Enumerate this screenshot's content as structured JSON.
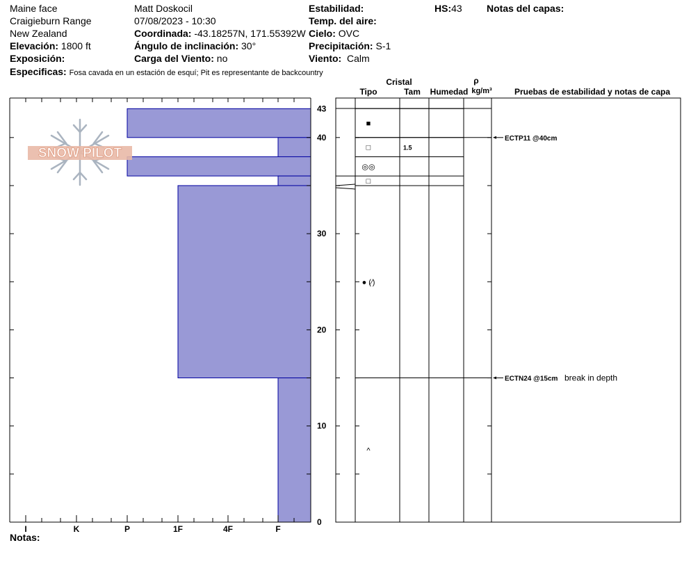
{
  "header": {
    "location": "Maine face",
    "range": "Craigieburn Range",
    "country": "New Zealand",
    "elevation_label": "Elevación:",
    "elevation": "1800 ft",
    "exposure_label": "Exposición:",
    "exposure": "",
    "observer": "Matt Doskocil",
    "datetime": "07/08/2023 - 10:30",
    "coord_label": "Coordinada:",
    "coord": "-43.18257N, 171.55392W",
    "slope_label": "Ángulo de inclinación:",
    "slope": "30°",
    "wind_load_label": "Carga del Viento:",
    "wind_load": "no",
    "stability_label": "Estabilidad:",
    "stability": "",
    "air_temp_label": "Temp. del aire:",
    "air_temp": "",
    "sky_label": "Cielo:",
    "sky": "OVC",
    "precip_label": "Precipitación:",
    "precip": "S-1",
    "wind_label": "Viento:",
    "wind": "Calm",
    "hs_label": "HS:",
    "hs": "43",
    "layer_notes_label": "Notas del capas:",
    "specifics_label": "Especificas:",
    "specifics": "Fosa cavada en un estación de esquí; Pit es representante de backcountry"
  },
  "logo": {
    "text": "SNOW PILOT"
  },
  "columns": {
    "crystal": "Cristal",
    "type": "Tipo",
    "size": "Tam",
    "moisture": "Humedad",
    "rho": "ρ",
    "density_unit": "kg/m³",
    "tests": "Pruebas de estabilidad y notas de capa"
  },
  "notes_label": "Notas:",
  "hardness_scale": [
    "I",
    "K",
    "P",
    "1F",
    "4F",
    "F"
  ],
  "depth_labels": [
    "43",
    "40",
    "30",
    "20",
    "10",
    "0"
  ],
  "chart_data": {
    "type": "snow_profile",
    "y_axis": {
      "label": "",
      "range": [
        0,
        43
      ],
      "ticks": [
        0,
        10,
        20,
        30,
        40,
        43
      ]
    },
    "hardness_ticks": [
      "I",
      "K",
      "P",
      "1F",
      "4F",
      "F"
    ],
    "layers": [
      {
        "top": 43,
        "bottom": 40,
        "hardness": "P",
        "crystal": "melt-freeze crust",
        "size": ""
      },
      {
        "top": 40,
        "bottom": 38,
        "hardness": "F",
        "crystal": "faceted",
        "size": "1.5"
      },
      {
        "top": 38,
        "bottom": 36,
        "hardness": "P",
        "crystal": "rounds",
        "size": ""
      },
      {
        "top": 36,
        "bottom": 35,
        "hardness": "F",
        "crystal": "faceted",
        "size": ""
      },
      {
        "top": 35,
        "bottom": 15,
        "hardness": "1F",
        "crystal": "rounding grains",
        "size": ""
      },
      {
        "top": 15,
        "bottom": 0,
        "hardness": "F",
        "crystal": "depth hoar",
        "size": ""
      }
    ],
    "crystal_symbols": [
      "■",
      "□",
      "◎◎",
      "□",
      "● (⁄)",
      "^"
    ],
    "tests": [
      {
        "depth": 40,
        "result": "ECTP11 @40cm",
        "note": ""
      },
      {
        "depth": 15,
        "result": "ECTN24 @15cm",
        "note": "break in depth"
      }
    ]
  },
  "colors": {
    "bar_fill": "#9999d6",
    "bar_stroke": "#0000a0",
    "logo": "#e9b9a7",
    "flake": "#aab4c0"
  }
}
